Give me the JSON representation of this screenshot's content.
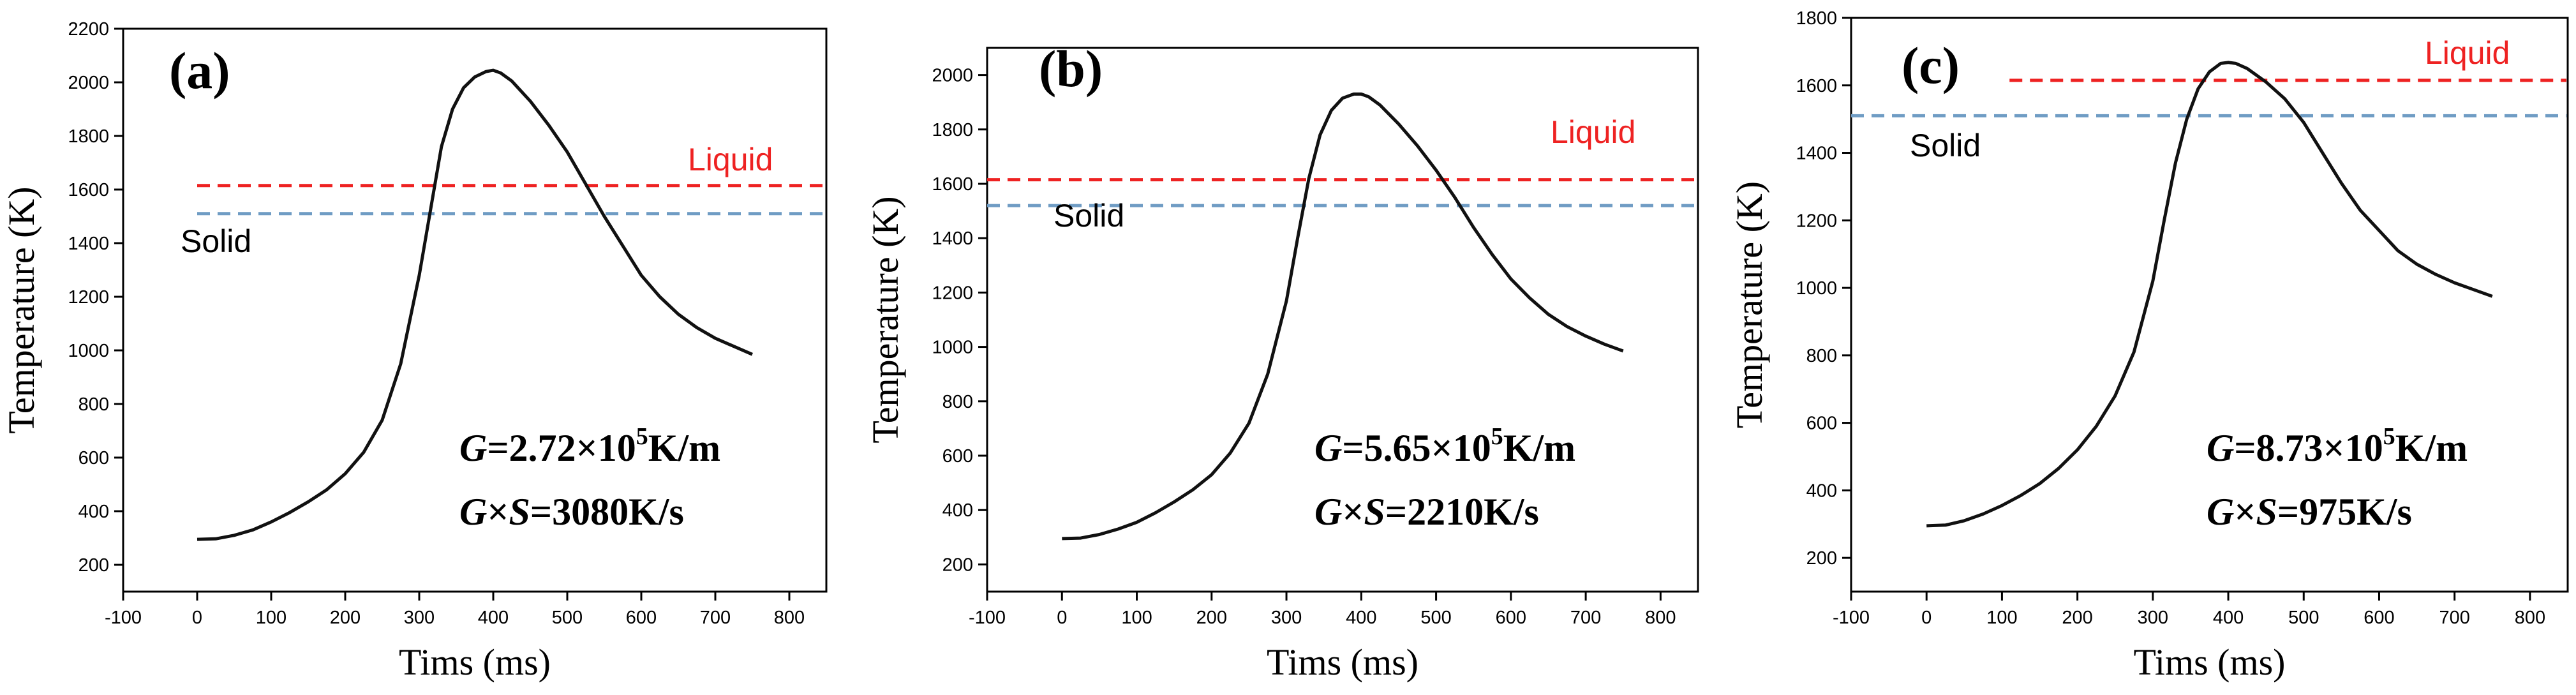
{
  "chart_data": [
    {
      "type": "line",
      "panel_label": "(a)",
      "xlabel": "Tims (ms)",
      "ylabel": "Temperature (K)",
      "xlim": [
        -100,
        850
      ],
      "ylim": [
        100,
        2200
      ],
      "xticks": [
        -100,
        0,
        100,
        200,
        300,
        400,
        500,
        600,
        700,
        800
      ],
      "yticks": [
        200,
        400,
        600,
        800,
        1000,
        1200,
        1400,
        1600,
        1800,
        2000,
        2200
      ],
      "series": [
        {
          "name": "temperature",
          "color": "#111111",
          "x": [
            0,
            25,
            50,
            75,
            100,
            125,
            150,
            175,
            200,
            225,
            250,
            275,
            300,
            315,
            330,
            345,
            360,
            375,
            390,
            400,
            410,
            425,
            450,
            475,
            500,
            525,
            550,
            575,
            600,
            625,
            650,
            675,
            700,
            725,
            750
          ],
          "y": [
            295,
            297,
            310,
            330,
            360,
            395,
            435,
            480,
            540,
            620,
            740,
            950,
            1280,
            1520,
            1760,
            1900,
            1980,
            2020,
            2040,
            2045,
            2035,
            2005,
            1930,
            1840,
            1740,
            1620,
            1500,
            1390,
            1280,
            1200,
            1135,
            1085,
            1045,
            1015,
            985
          ]
        }
      ],
      "reference_lines": [
        {
          "label": "Liquid",
          "y": 1615,
          "x_start": 0,
          "x_end": 850,
          "color": "#ee2222",
          "label_color": "#ee2222"
        },
        {
          "label": "Solid",
          "y": 1510,
          "x_start": 0,
          "x_end": 850,
          "color": "#6f9cc4",
          "label_color": "#000000"
        }
      ],
      "annotations": {
        "g_prefix": "G",
        "g_value": "=2.72×10",
        "g_exp": "5",
        "g_unit": "K/m",
        "gs_g": "G",
        "gs_times": "×",
        "gs_s": "S",
        "gs_value": "=3080K/s"
      }
    },
    {
      "type": "line",
      "panel_label": "(b)",
      "xlabel": "Tims (ms)",
      "ylabel": "Temperature (K)",
      "xlim": [
        -100,
        850
      ],
      "ylim": [
        100,
        2100
      ],
      "xticks": [
        -100,
        0,
        100,
        200,
        300,
        400,
        500,
        600,
        700,
        800
      ],
      "yticks": [
        200,
        400,
        600,
        800,
        1000,
        1200,
        1400,
        1600,
        1800,
        2000
      ],
      "series": [
        {
          "name": "temperature",
          "color": "#111111",
          "x": [
            0,
            25,
            50,
            75,
            100,
            125,
            150,
            175,
            200,
            225,
            250,
            275,
            300,
            315,
            330,
            345,
            360,
            375,
            390,
            400,
            410,
            425,
            450,
            475,
            500,
            525,
            550,
            575,
            600,
            625,
            650,
            675,
            700,
            725,
            750
          ],
          "y": [
            295,
            297,
            310,
            330,
            355,
            390,
            430,
            475,
            530,
            610,
            720,
            900,
            1170,
            1400,
            1620,
            1780,
            1870,
            1915,
            1930,
            1930,
            1920,
            1890,
            1820,
            1740,
            1650,
            1550,
            1440,
            1340,
            1250,
            1180,
            1120,
            1075,
            1040,
            1010,
            985
          ]
        }
      ],
      "reference_lines": [
        {
          "label": "Liquid",
          "y": 1615,
          "x_start": -100,
          "x_end": 850,
          "color": "#ee2222",
          "label_color": "#ee2222"
        },
        {
          "label": "Solid",
          "y": 1520,
          "x_start": -100,
          "x_end": 850,
          "color": "#6f9cc4",
          "label_color": "#000000"
        }
      ],
      "annotations": {
        "g_prefix": "G",
        "g_value": "=5.65×10",
        "g_exp": "5",
        "g_unit": "K/m",
        "gs_g": "G",
        "gs_times": "×",
        "gs_s": "S",
        "gs_value": "=2210K/s"
      }
    },
    {
      "type": "line",
      "panel_label": "(c)",
      "xlabel": "Tims (ms)",
      "ylabel": "Temperature (K)",
      "xlim": [
        -100,
        850
      ],
      "ylim": [
        100,
        1800
      ],
      "xticks": [
        -100,
        0,
        100,
        200,
        300,
        400,
        500,
        600,
        700,
        800
      ],
      "yticks": [
        200,
        400,
        600,
        800,
        1000,
        1200,
        1400,
        1600,
        1800
      ],
      "series": [
        {
          "name": "temperature",
          "color": "#111111",
          "x": [
            0,
            25,
            50,
            75,
            100,
            125,
            150,
            175,
            200,
            225,
            250,
            275,
            300,
            315,
            330,
            345,
            360,
            375,
            390,
            400,
            410,
            425,
            450,
            475,
            500,
            525,
            550,
            575,
            600,
            625,
            650,
            675,
            700,
            725,
            750
          ],
          "y": [
            295,
            297,
            310,
            330,
            355,
            385,
            420,
            465,
            520,
            590,
            680,
            810,
            1020,
            1200,
            1370,
            1500,
            1590,
            1640,
            1665,
            1668,
            1665,
            1650,
            1610,
            1560,
            1490,
            1400,
            1310,
            1230,
            1170,
            1110,
            1070,
            1040,
            1015,
            995,
            975
          ]
        }
      ],
      "reference_lines": [
        {
          "label": "Liquid",
          "y": 1615,
          "x_start": 110,
          "x_end": 850,
          "color": "#ee2222",
          "label_color": "#ee2222"
        },
        {
          "label": "Solid",
          "y": 1510,
          "x_start": -100,
          "x_end": 850,
          "color": "#6f9cc4",
          "label_color": "#000000"
        }
      ],
      "annotations": {
        "g_prefix": "G",
        "g_value": "=8.73×10",
        "g_exp": "5",
        "g_unit": "K/m",
        "gs_g": "G",
        "gs_times": "×",
        "gs_s": "S",
        "gs_value": "=975K/s"
      }
    }
  ]
}
